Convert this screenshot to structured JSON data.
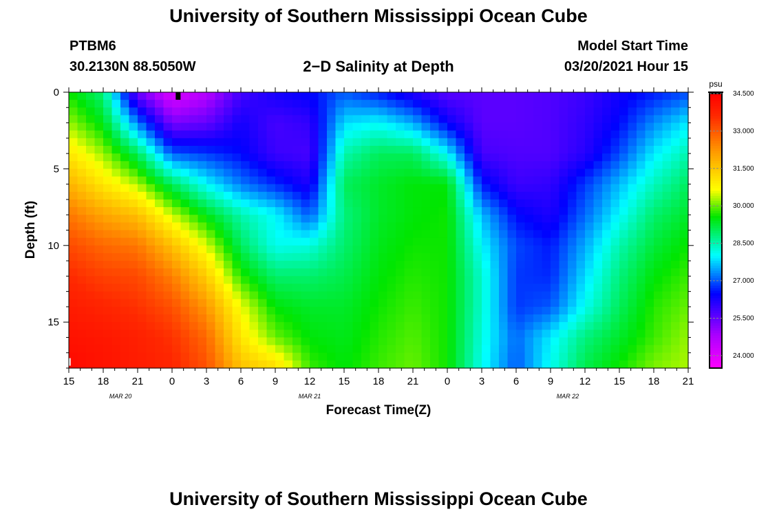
{
  "header": {
    "title_top": "University of Southern Mississippi Ocean Cube",
    "title_bottom": "University of Southern Mississippi Ocean Cube",
    "station": "PTBM6",
    "location": "30.2130N 88.5050W",
    "plot_title": "2−D Salinity at Depth",
    "model_start_label": "Model Start Time",
    "model_start_value": "03/20/2021 Hour 15"
  },
  "chart_data": {
    "type": "heatmap",
    "title": "2−D Salinity at Depth",
    "xlabel": "Forecast Time(Z)",
    "ylabel": "Depth (ft)",
    "x_hours_from_start": [
      0,
      54
    ],
    "ylim": [
      18,
      0
    ],
    "x_ticks": [
      {
        "h": 0,
        "label": "15"
      },
      {
        "h": 3,
        "label": "18"
      },
      {
        "h": 6,
        "label": "21"
      },
      {
        "h": 9,
        "label": "0"
      },
      {
        "h": 12,
        "label": "3"
      },
      {
        "h": 15,
        "label": "6"
      },
      {
        "h": 18,
        "label": "9"
      },
      {
        "h": 21,
        "label": "12"
      },
      {
        "h": 24,
        "label": "15"
      },
      {
        "h": 27,
        "label": "18"
      },
      {
        "h": 30,
        "label": "21"
      },
      {
        "h": 33,
        "label": "0"
      },
      {
        "h": 36,
        "label": "3"
      },
      {
        "h": 39,
        "label": "6"
      },
      {
        "h": 42,
        "label": "9"
      },
      {
        "h": 45,
        "label": "12"
      },
      {
        "h": 48,
        "label": "15"
      },
      {
        "h": 51,
        "label": "18"
      },
      {
        "h": 54,
        "label": "21"
      }
    ],
    "date_labels": [
      {
        "h": 4.5,
        "label": "MAR 20"
      },
      {
        "h": 21,
        "label": "MAR 21"
      },
      {
        "h": 43.5,
        "label": "MAR 22"
      }
    ],
    "y_ticks": [
      0,
      5,
      10,
      15
    ],
    "colorbar": {
      "unit": "psu",
      "min": 23.5,
      "max": 34.5,
      "labels": [
        "34.500",
        "33.000",
        "31.500",
        "30.000",
        "28.500",
        "27.000",
        "25.500",
        "24.000"
      ],
      "label_values": [
        34.5,
        33.0,
        31.5,
        30.0,
        28.5,
        27.0,
        25.5,
        24.0
      ]
    },
    "grid": {
      "hours": [
        0,
        3,
        6,
        9,
        12,
        15,
        18,
        21,
        24,
        27,
        30,
        33,
        36,
        39,
        42,
        45,
        48,
        51,
        54
      ],
      "depths_ft": [
        0,
        2,
        4,
        6,
        8,
        10,
        12,
        14,
        16,
        18
      ],
      "salinity_psu": [
        [
          29.6,
          28.8,
          25.4,
          24.0,
          24.6,
          25.8,
          26.3,
          26.5,
          27.0,
          26.6,
          26.1,
          25.6,
          25.6,
          25.6,
          25.7,
          25.9,
          26.3,
          26.6,
          26.9
        ],
        [
          30.2,
          29.4,
          27.2,
          25.3,
          25.5,
          26.3,
          25.8,
          26.0,
          27.8,
          28.0,
          27.5,
          26.4,
          25.6,
          25.6,
          25.7,
          26.0,
          26.5,
          27.3,
          27.9
        ],
        [
          31.0,
          30.2,
          29.0,
          27.0,
          26.8,
          26.5,
          25.9,
          25.8,
          28.5,
          29.0,
          29.0,
          28.0,
          25.8,
          25.7,
          25.7,
          26.1,
          26.9,
          27.9,
          28.5
        ],
        [
          31.8,
          31.0,
          30.3,
          29.0,
          28.0,
          27.2,
          26.7,
          26.2,
          29.0,
          29.3,
          29.5,
          29.5,
          26.6,
          25.9,
          26.0,
          26.8,
          27.6,
          28.4,
          29.0
        ],
        [
          32.6,
          32.0,
          31.6,
          30.4,
          29.4,
          28.5,
          28.0,
          27.0,
          28.8,
          29.3,
          29.5,
          29.6,
          27.6,
          26.5,
          26.2,
          27.1,
          28.0,
          28.9,
          29.3
        ],
        [
          33.2,
          32.8,
          32.6,
          31.6,
          30.5,
          29.0,
          28.1,
          28.2,
          28.9,
          29.4,
          29.6,
          29.6,
          28.0,
          26.9,
          26.6,
          27.5,
          28.5,
          29.2,
          29.6
        ],
        [
          33.6,
          33.3,
          33.2,
          32.5,
          31.4,
          29.7,
          28.9,
          28.9,
          29.1,
          29.5,
          29.7,
          29.6,
          28.3,
          26.8,
          26.7,
          27.8,
          28.8,
          29.5,
          29.8
        ],
        [
          33.9,
          33.7,
          33.5,
          33.1,
          32.2,
          30.6,
          29.5,
          29.3,
          29.3,
          29.6,
          29.8,
          29.6,
          28.3,
          26.8,
          27.0,
          28.1,
          29.0,
          29.7,
          30.0
        ],
        [
          34.1,
          34.0,
          33.8,
          33.5,
          32.8,
          31.0,
          30.0,
          29.5,
          29.4,
          29.7,
          29.9,
          29.6,
          28.2,
          27.1,
          27.9,
          28.8,
          29.3,
          29.8,
          30.2
        ],
        [
          34.3,
          34.1,
          33.9,
          33.7,
          33.1,
          31.6,
          31.2,
          29.8,
          29.5,
          29.8,
          30.0,
          29.6,
          28.1,
          27.0,
          28.1,
          29.1,
          29.6,
          30.1,
          30.3
        ]
      ]
    },
    "markers": [
      {
        "h": 9.5,
        "depth": 0.0,
        "color": "#000000"
      },
      {
        "h": 0.1,
        "depth": 17.8,
        "color": "#ffffff"
      }
    ]
  }
}
